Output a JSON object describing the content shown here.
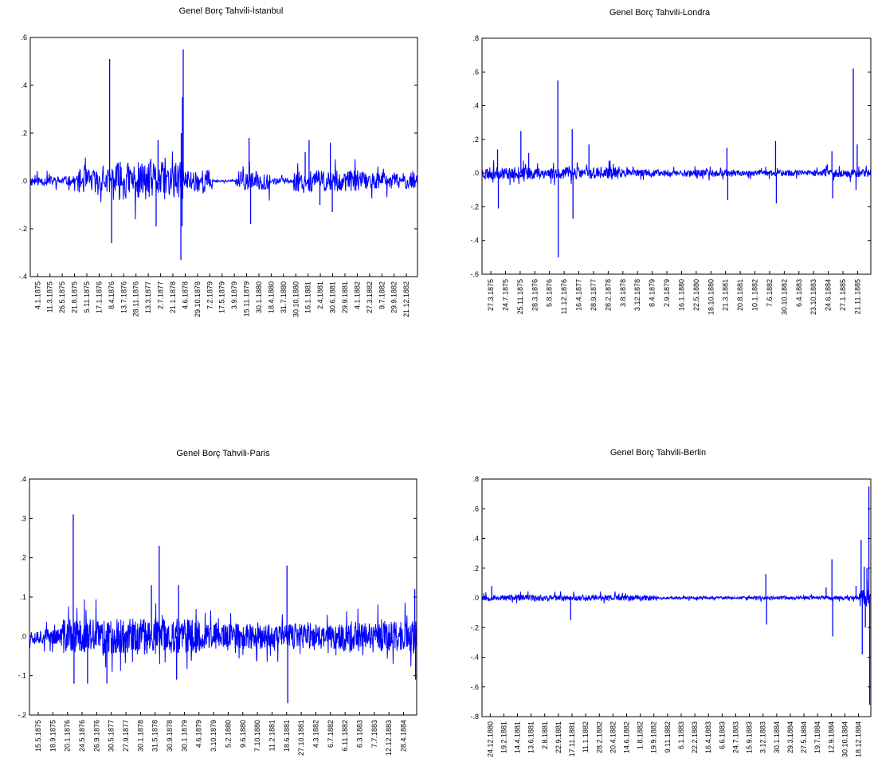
{
  "line_color": "#0000ff",
  "chart_data": [
    {
      "type": "line",
      "title": "Genel Borç Tahvili-İstanbul",
      "xlabel": "",
      "ylabel": "",
      "ylim": [
        -0.4,
        0.6
      ],
      "yticks": [
        ".6",
        ".4",
        ".2",
        ".0",
        "-.2",
        "-.4"
      ],
      "ytick_values": [
        0.6,
        0.4,
        0.2,
        0.0,
        -0.2,
        -0.4
      ],
      "xticks": [
        "4.1.1875",
        "11.3.1875",
        "26.5.1875",
        "21.8.1875",
        "5.11.1875",
        "17.1.1876",
        "8.4.1876",
        "13.7.1876",
        "28.11.1876",
        "13.3.1877",
        "2.7.1877",
        "21.1.1878",
        "4.6.1878",
        "29.10.1878",
        "7.2.1879",
        "17.5.1879",
        "3.9.1879",
        "15.11.1879",
        "30.1.1880",
        "18.4.1880",
        "31.7.1880",
        "30.10.1880",
        "16.1.1881",
        "2.4.1881",
        "30.6.1881",
        "29.9.1881",
        "4.1.1882",
        "27.3.1882",
        "9.7.1882",
        "29.9.1882",
        "21.12.1882"
      ],
      "spikes": [
        {
          "x": 0.205,
          "y": 0.51
        },
        {
          "x": 0.21,
          "y": -0.26
        },
        {
          "x": 0.395,
          "y": 0.55
        },
        {
          "x": 0.393,
          "y": 0.35
        },
        {
          "x": 0.389,
          "y": -0.33
        },
        {
          "x": 0.392,
          "y": -0.19
        },
        {
          "x": 0.39,
          "y": 0.2
        },
        {
          "x": 0.565,
          "y": 0.18
        },
        {
          "x": 0.569,
          "y": -0.18
        },
        {
          "x": 0.72,
          "y": 0.17
        },
        {
          "x": 0.71,
          "y": 0.12
        },
        {
          "x": 0.748,
          "y": -0.1
        },
        {
          "x": 0.775,
          "y": 0.16
        },
        {
          "x": 0.78,
          "y": -0.13
        },
        {
          "x": 0.33,
          "y": 0.17
        },
        {
          "x": 0.325,
          "y": -0.19
        }
      ],
      "noise": {
        "seed": 11,
        "n": 900,
        "segments": [
          [
            0.0,
            0.12,
            0.02
          ],
          [
            0.12,
            0.21,
            0.05
          ],
          [
            0.21,
            0.4,
            0.08
          ],
          [
            0.4,
            0.47,
            0.05
          ],
          [
            0.47,
            0.53,
            0.004
          ],
          [
            0.53,
            0.62,
            0.04
          ],
          [
            0.62,
            0.68,
            0.012
          ],
          [
            0.68,
            0.86,
            0.045
          ],
          [
            0.86,
            1.0,
            0.035
          ]
        ]
      }
    },
    {
      "type": "line",
      "title": "Genel Borç Tahvili-Londra",
      "xlabel": "",
      "ylabel": "",
      "ylim": [
        -0.6,
        0.8
      ],
      "yticks": [
        ".8",
        ".6",
        ".4",
        ".2",
        ".0",
        "-.2",
        "-.4",
        "-.6"
      ],
      "ytick_values": [
        0.8,
        0.6,
        0.4,
        0.2,
        0.0,
        -0.2,
        -0.4,
        -0.6
      ],
      "xticks": [
        "27.3.1875",
        "24.7.1875",
        "25.11.1875",
        "28.3.1876",
        "5.8.1876",
        "11.12.1876",
        "16.4.1877",
        "28.9.1877",
        "28.2.1878",
        "3.8.1878",
        "3.12.1878",
        "8.4.1879",
        "2.9.1879",
        "16.1.1880",
        "22.5.1880",
        "18.10.1880",
        "21.3.1881",
        "20.8.1881",
        "10.1.1882",
        "7.6.1882",
        "30.10.1882",
        "6.4.1883",
        "23.10.1883",
        "24.6.1884",
        "27.1.1885",
        "21.11.1885"
      ],
      "spikes": [
        {
          "x": 0.04,
          "y": 0.14
        },
        {
          "x": 0.042,
          "y": -0.21
        },
        {
          "x": 0.1,
          "y": 0.25
        },
        {
          "x": 0.12,
          "y": 0.12
        },
        {
          "x": 0.195,
          "y": 0.55
        },
        {
          "x": 0.196,
          "y": -0.5
        },
        {
          "x": 0.232,
          "y": 0.26
        },
        {
          "x": 0.234,
          "y": -0.27
        },
        {
          "x": 0.275,
          "y": 0.17
        },
        {
          "x": 0.63,
          "y": 0.15
        },
        {
          "x": 0.632,
          "y": -0.16
        },
        {
          "x": 0.755,
          "y": 0.19
        },
        {
          "x": 0.757,
          "y": -0.18
        },
        {
          "x": 0.9,
          "y": 0.13
        },
        {
          "x": 0.902,
          "y": -0.15
        },
        {
          "x": 0.955,
          "y": 0.62
        },
        {
          "x": 0.965,
          "y": 0.17
        },
        {
          "x": 0.962,
          "y": -0.1
        }
      ],
      "noise": {
        "seed": 23,
        "n": 1100,
        "segments": [
          [
            0.0,
            0.35,
            0.035
          ],
          [
            0.35,
            0.6,
            0.022
          ],
          [
            0.6,
            0.85,
            0.018
          ],
          [
            0.85,
            1.0,
            0.025
          ]
        ]
      }
    },
    {
      "type": "line",
      "title": "Genel Borç Tahvili-Paris",
      "xlabel": "",
      "ylabel": "",
      "ylim": [
        -0.2,
        0.4
      ],
      "yticks": [
        ".4",
        ".3",
        ".2",
        ".1",
        ".0",
        "-.1",
        "-.2"
      ],
      "ytick_values": [
        0.4,
        0.3,
        0.2,
        0.1,
        0.0,
        -0.1,
        -0.2
      ],
      "xticks": [
        "15.5.1875",
        "18.9.1875",
        "20.1.1876",
        "24.5.1876",
        "26.9.1876",
        "30.5.1877",
        "27.9.1877",
        "30.1.1878",
        "31.5.1878",
        "30.9.1878",
        "30.1.1879",
        "4.6.1879",
        "3.10.1879",
        "5.2.1880",
        "9.6.1880",
        "7.10.1880",
        "11.2.1881",
        "18.6.1881",
        "27.10.1881",
        "4.3.1882",
        "6.7.1882",
        "6.11.1882",
        "6.3.1883",
        "7.7.1883",
        "12.12.1883",
        "28.4.1884"
      ],
      "spikes": [
        {
          "x": 0.113,
          "y": 0.31
        },
        {
          "x": 0.115,
          "y": -0.12
        },
        {
          "x": 0.15,
          "y": -0.12
        },
        {
          "x": 0.2,
          "y": -0.12
        },
        {
          "x": 0.315,
          "y": 0.13
        },
        {
          "x": 0.335,
          "y": 0.23
        },
        {
          "x": 0.385,
          "y": 0.13
        },
        {
          "x": 0.38,
          "y": -0.11
        },
        {
          "x": 0.665,
          "y": 0.18
        },
        {
          "x": 0.667,
          "y": -0.17
        },
        {
          "x": 0.995,
          "y": 0.12
        },
        {
          "x": 0.997,
          "y": -0.11
        }
      ],
      "noise": {
        "seed": 37,
        "n": 1200,
        "segments": [
          [
            0.0,
            0.08,
            0.02
          ],
          [
            0.08,
            0.45,
            0.045
          ],
          [
            0.45,
            0.8,
            0.032
          ],
          [
            0.8,
            1.0,
            0.04
          ]
        ]
      }
    },
    {
      "type": "line",
      "title": "Genel Borç Tahvili-Berlin",
      "xlabel": "",
      "ylabel": "",
      "ylim": [
        -0.8,
        0.8
      ],
      "yticks": [
        ".8",
        ".6",
        ".4",
        ".2",
        ".0",
        "-.2",
        "-.4",
        "-.6",
        "-.8"
      ],
      "ytick_values": [
        0.8,
        0.6,
        0.4,
        0.2,
        0.0,
        -0.2,
        -0.4,
        -0.6,
        -0.8
      ],
      "xticks": [
        "24.12.1880",
        "19.2.1881",
        "14.4.1881",
        "13.6.1881",
        "2.8.1881",
        "22.9.1881",
        "17.11.1881",
        "11.1.1882",
        "28.2.1882",
        "20.4.1882",
        "14.6.1882",
        "1.8.1882",
        "19.9.1882",
        "9.11.1882",
        "6.1.1883",
        "22.2.1883",
        "16.4.1883",
        "6.6.1883",
        "24.7.1883",
        "15.9.1883",
        "3.12.1883",
        "30.1.1884",
        "29.3.1884",
        "27.5.1884",
        "19.7.1884",
        "12.9.1884",
        "30.10.1884",
        "18.12.1884"
      ],
      "spikes": [
        {
          "x": 0.025,
          "y": 0.08
        },
        {
          "x": 0.228,
          "y": -0.15
        },
        {
          "x": 0.73,
          "y": 0.16
        },
        {
          "x": 0.732,
          "y": -0.18
        },
        {
          "x": 0.885,
          "y": 0.07
        },
        {
          "x": 0.9,
          "y": 0.26
        },
        {
          "x": 0.902,
          "y": -0.26
        },
        {
          "x": 0.962,
          "y": 0.08
        },
        {
          "x": 0.975,
          "y": 0.39
        },
        {
          "x": 0.978,
          "y": -0.38
        },
        {
          "x": 0.983,
          "y": 0.21
        },
        {
          "x": 0.986,
          "y": -0.2
        },
        {
          "x": 0.99,
          "y": 0.2
        },
        {
          "x": 0.995,
          "y": 0.75
        },
        {
          "x": 0.997,
          "y": -0.72
        }
      ],
      "noise": {
        "seed": 53,
        "n": 1100,
        "segments": [
          [
            0.0,
            0.45,
            0.02
          ],
          [
            0.45,
            0.7,
            0.009
          ],
          [
            0.7,
            0.97,
            0.012
          ],
          [
            0.97,
            1.0,
            0.06
          ]
        ]
      }
    }
  ]
}
